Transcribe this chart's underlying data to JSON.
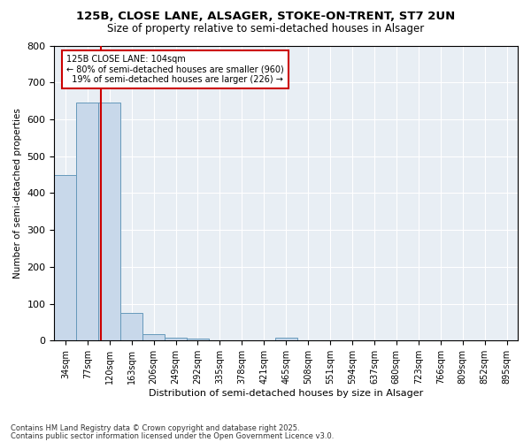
{
  "title1": "125B, CLOSE LANE, ALSAGER, STOKE-ON-TRENT, ST7 2UN",
  "title2": "Size of property relative to semi-detached houses in Alsager",
  "xlabel": "Distribution of semi-detached houses by size in Alsager",
  "ylabel": "Number of semi-detached properties",
  "categories": [
    "34sqm",
    "77sqm",
    "120sqm",
    "163sqm",
    "206sqm",
    "249sqm",
    "292sqm",
    "335sqm",
    "378sqm",
    "421sqm",
    "465sqm",
    "508sqm",
    "551sqm",
    "594sqm",
    "637sqm",
    "680sqm",
    "723sqm",
    "766sqm",
    "809sqm",
    "852sqm",
    "895sqm"
  ],
  "values": [
    450,
    645,
    645,
    75,
    18,
    8,
    5,
    0,
    0,
    0,
    8,
    0,
    0,
    0,
    0,
    0,
    0,
    0,
    0,
    0,
    0
  ],
  "bar_color": "#c8d8ea",
  "bar_edge_color": "#6699bb",
  "marker_label": "125B CLOSE LANE: 104sqm",
  "smaller_pct": "80%",
  "smaller_n": 960,
  "larger_pct": "19%",
  "larger_n": 226,
  "annotation_box_color": "#cc0000",
  "ylim": [
    0,
    800
  ],
  "yticks": [
    0,
    100,
    200,
    300,
    400,
    500,
    600,
    700,
    800
  ],
  "footer1": "Contains HM Land Registry data © Crown copyright and database right 2025.",
  "footer2": "Contains public sector information licensed under the Open Government Licence v3.0.",
  "background_color": "#e8eef4"
}
